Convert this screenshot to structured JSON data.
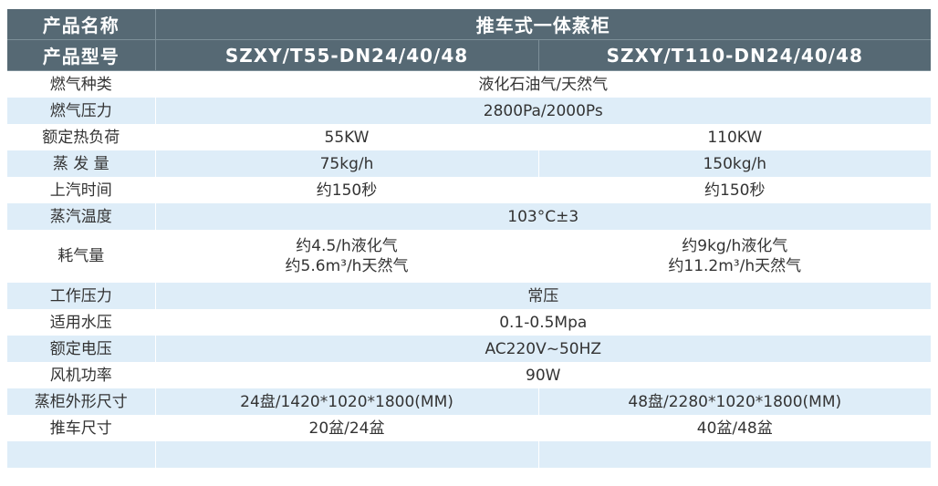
{
  "header": {
    "name_label": "产品名称",
    "name_value": "推车式一体蒸柜",
    "model_label": "产品型号",
    "models": [
      "SZXY/T55-DN24/40/48",
      "SZXY/T110-DN24/40/48"
    ]
  },
  "rows": [
    {
      "label": "燃气种类",
      "value": "液化石油气/天然气"
    },
    {
      "label": "燃气压力",
      "value": "2800Pa/2000Ps"
    },
    {
      "label": "额定热负荷",
      "values": [
        "55KW",
        "110KW"
      ]
    },
    {
      "label": "蒸 发 量",
      "values": [
        "75kg/h",
        "150kg/h"
      ]
    },
    {
      "label": "上汽时间",
      "values": [
        "约150秒",
        "约150秒"
      ]
    },
    {
      "label": "蒸汽温度",
      "value": "103°C±3"
    },
    {
      "label": "耗气量",
      "values": [
        [
          "约4.5/h液化气",
          "约5.6m³/h天然气"
        ],
        [
          "约9kg/h液化气",
          "约11.2m³/h天然气"
        ]
      ]
    },
    {
      "label": "工作压力",
      "value": "常压"
    },
    {
      "label": "适用水压",
      "value": "0.1-0.5Mpa"
    },
    {
      "label": "额定电压",
      "value": "AC220V~50HZ"
    },
    {
      "label": "风机功率",
      "value": "90W"
    },
    {
      "label": "蒸柜外形尺寸",
      "values": [
        "24盘/1420*1020*1800(MM)",
        "48盘/2280*1020*1800(MM)"
      ]
    },
    {
      "label": "推车尺寸",
      "values": [
        "20盆/24盆",
        "40盆/48盆"
      ]
    }
  ],
  "colors": {
    "header": "#566974",
    "stripe": "#deedf8"
  }
}
